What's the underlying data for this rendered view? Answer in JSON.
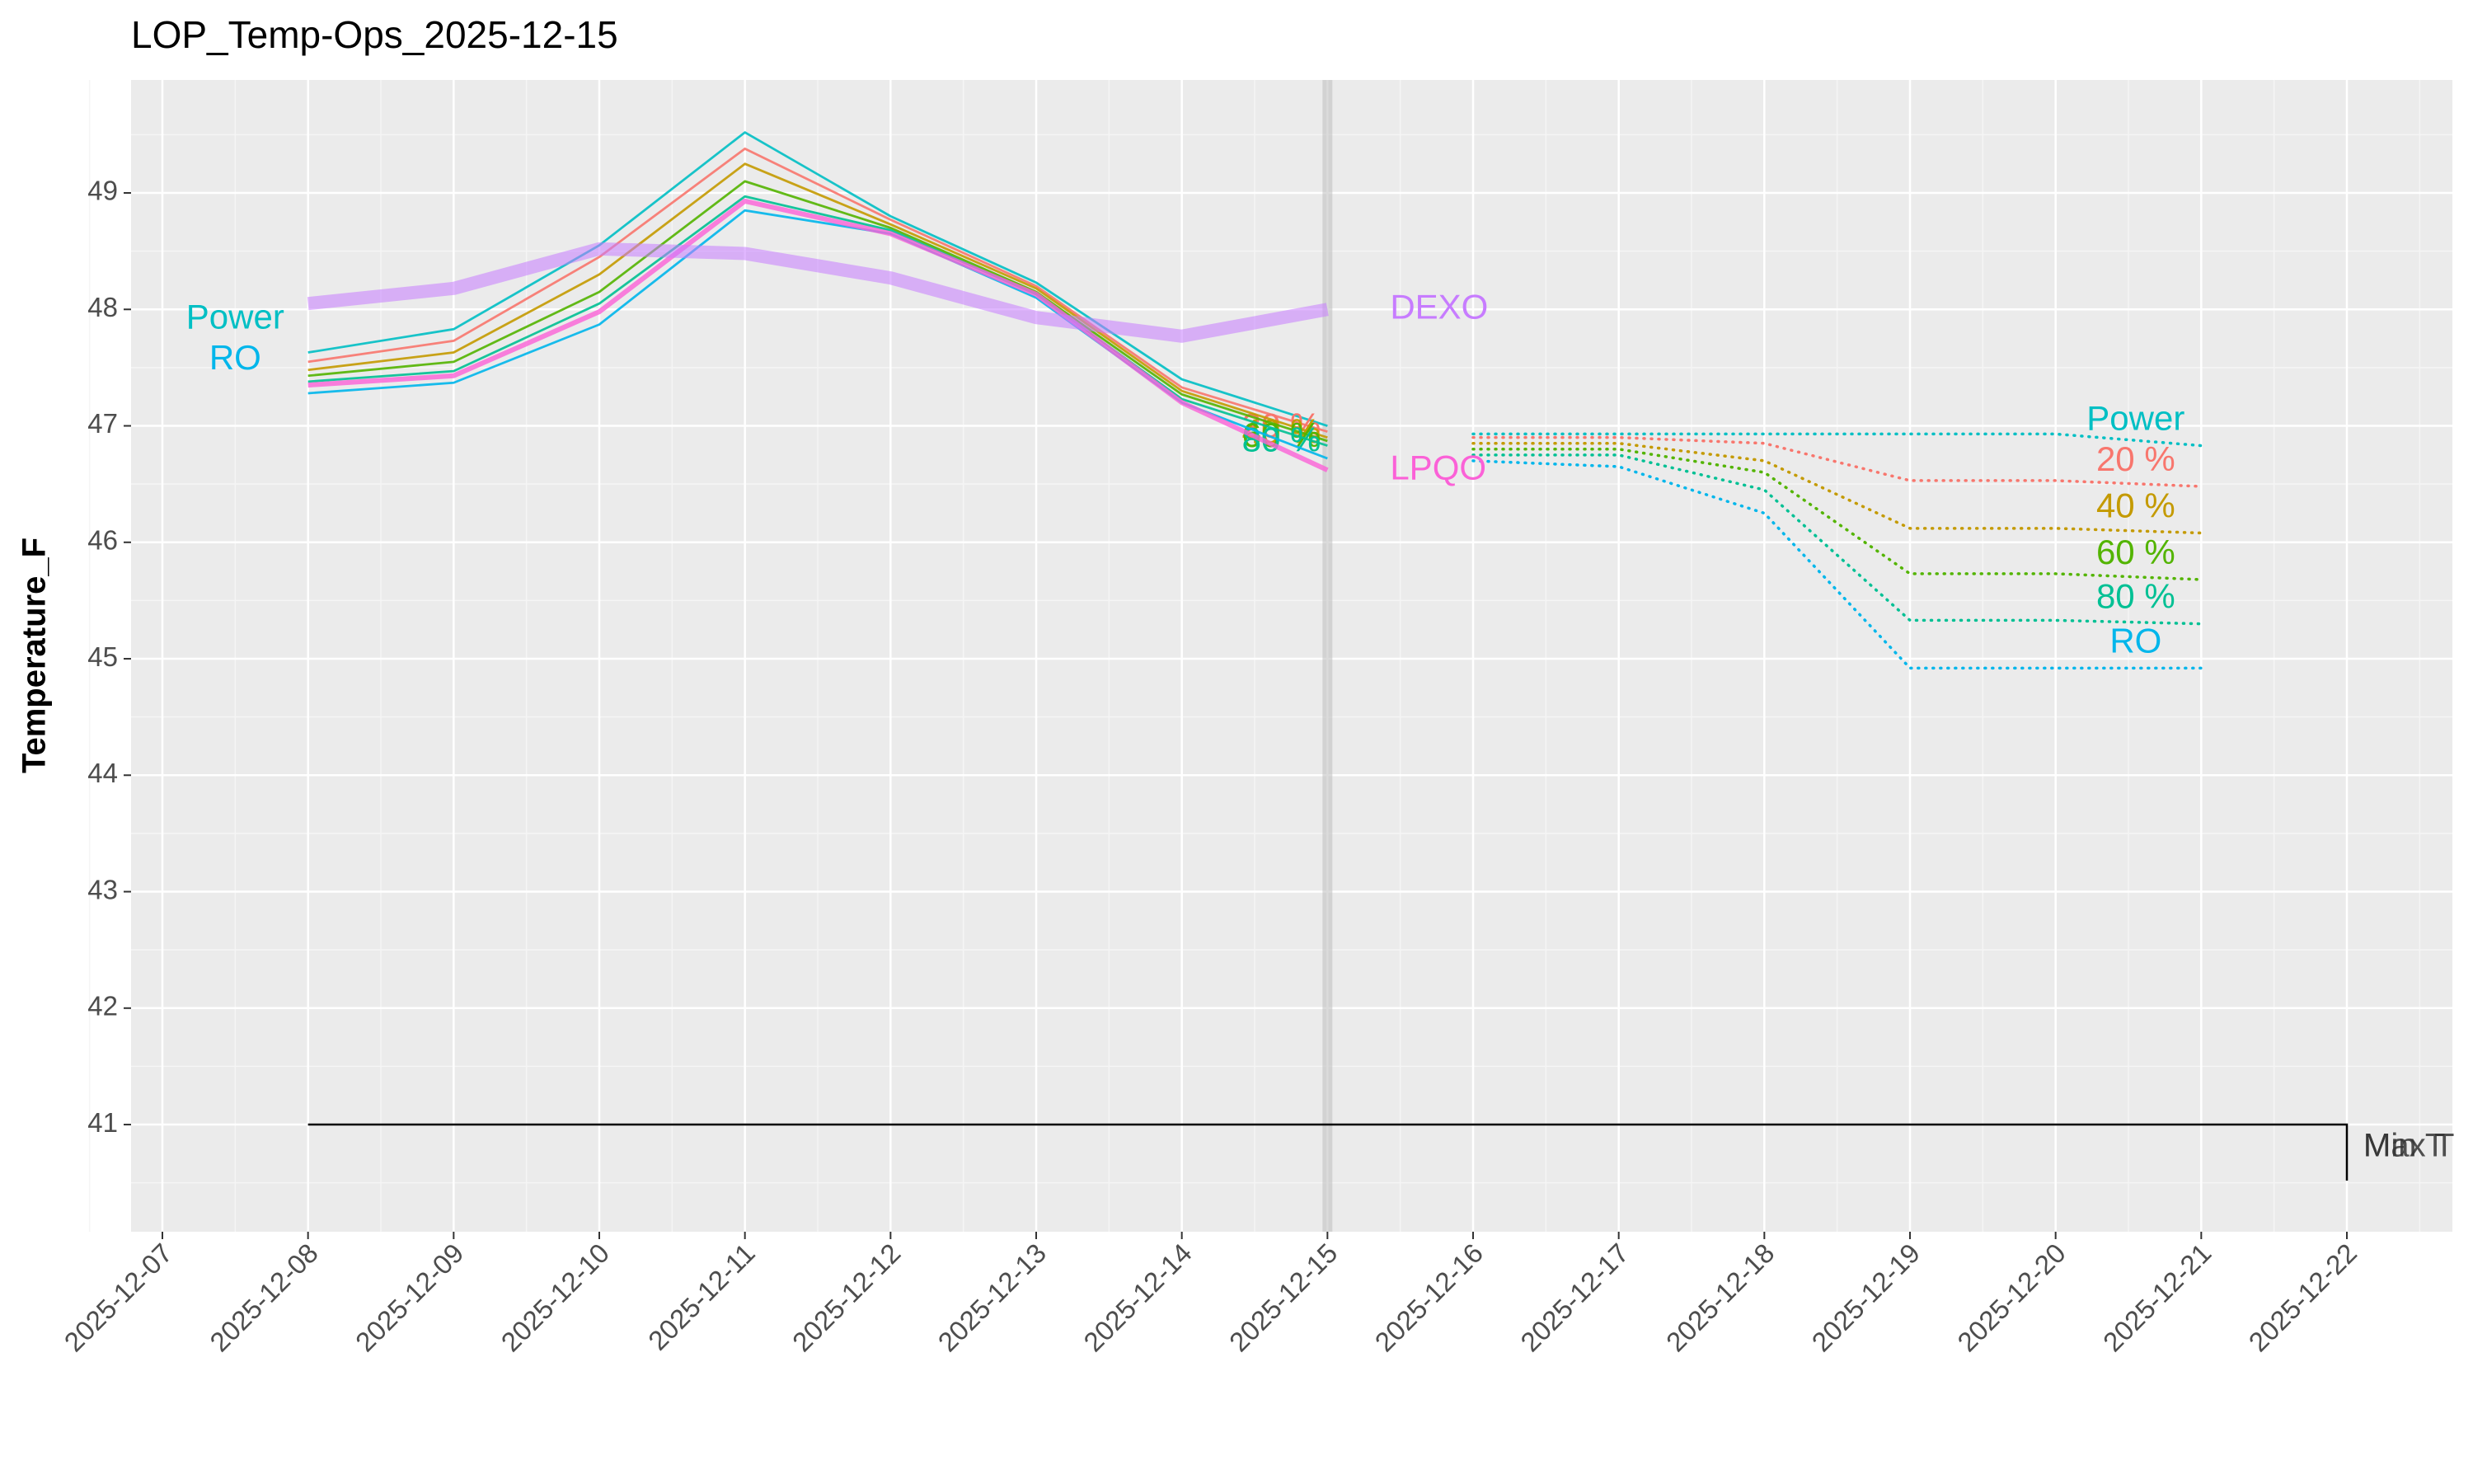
{
  "chart_data": {
    "type": "line",
    "title": "LOP_Temp-Ops_2025-12-15",
    "y_label": "Temperature_F",
    "x": [
      "2025-12-08",
      "2025-12-09",
      "2025-12-10",
      "2025-12-11",
      "2025-12-12",
      "2025-12-13",
      "2025-12-14",
      "2025-12-15"
    ],
    "x_forecast": [
      "2025-12-16",
      "2025-12-17",
      "2025-12-18",
      "2025-12-19",
      "2025-12-20",
      "2025-12-21"
    ],
    "series": [
      {
        "name": "Power",
        "color": "#00BFC4",
        "values": [
          47.63,
          47.83,
          48.55,
          49.52,
          48.8,
          48.23,
          47.4,
          47.0
        ],
        "forecast": [
          46.93,
          46.93,
          46.93,
          46.93,
          46.93,
          46.83
        ]
      },
      {
        "name": "20 %",
        "color": "#F8766D",
        "values": [
          47.55,
          47.73,
          48.45,
          49.38,
          48.77,
          48.2,
          47.33,
          46.95
        ],
        "forecast": [
          46.9,
          46.9,
          46.85,
          46.53,
          46.53,
          46.48
        ]
      },
      {
        "name": "40 %",
        "color": "#C49A00",
        "values": [
          47.48,
          47.63,
          48.3,
          49.25,
          48.73,
          48.18,
          47.3,
          46.9
        ],
        "forecast": [
          46.85,
          46.85,
          46.7,
          46.12,
          46.12,
          46.08
        ]
      },
      {
        "name": "60 %",
        "color": "#53B400",
        "values": [
          47.43,
          47.55,
          48.15,
          49.1,
          48.7,
          48.15,
          47.27,
          46.87
        ],
        "forecast": [
          46.8,
          46.8,
          46.6,
          45.73,
          45.73,
          45.68
        ]
      },
      {
        "name": "80 %",
        "color": "#00C094",
        "values": [
          47.38,
          47.47,
          48.05,
          48.97,
          48.68,
          48.13,
          47.23,
          46.83
        ],
        "forecast": [
          46.75,
          46.75,
          46.45,
          45.33,
          45.33,
          45.3
        ]
      },
      {
        "name": "RO",
        "color": "#00B6EB",
        "values": [
          47.28,
          47.37,
          47.87,
          48.85,
          48.65,
          48.1,
          47.2,
          46.72
        ],
        "forecast": [
          46.7,
          46.65,
          46.25,
          44.92,
          44.92,
          44.92
        ]
      },
      {
        "name": "LPQO",
        "color": "#FB61D7",
        "values": [
          47.35,
          47.43,
          47.98,
          48.93,
          48.65,
          48.13,
          47.2,
          46.62
        ]
      },
      {
        "name": "DEXO",
        "color": "#C77CFF",
        "values": [
          48.05,
          48.18,
          48.52,
          48.48,
          48.27,
          47.93,
          47.77,
          48.0
        ]
      }
    ],
    "today": "2025-12-15",
    "threshold": {
      "value": 41,
      "start": "2025-12-08",
      "end": "2025-12-22",
      "labels": [
        "Max T",
        "Min T"
      ]
    },
    "xlim": [
      "2025-12-07",
      "2025-12-22"
    ],
    "xticks": [
      "2025-12-07",
      "2025-12-08",
      "2025-12-09",
      "2025-12-10",
      "2025-12-11",
      "2025-12-12",
      "2025-12-13",
      "2025-12-14",
      "2025-12-15",
      "2025-12-16",
      "2025-12-17",
      "2025-12-18",
      "2025-12-19",
      "2025-12-20",
      "2025-12-21",
      "2025-12-22"
    ],
    "ylim": [
      40.08,
      49.97
    ],
    "yticks": [
      41,
      42,
      43,
      44,
      45,
      46,
      47,
      48,
      49
    ],
    "grid": true
  }
}
